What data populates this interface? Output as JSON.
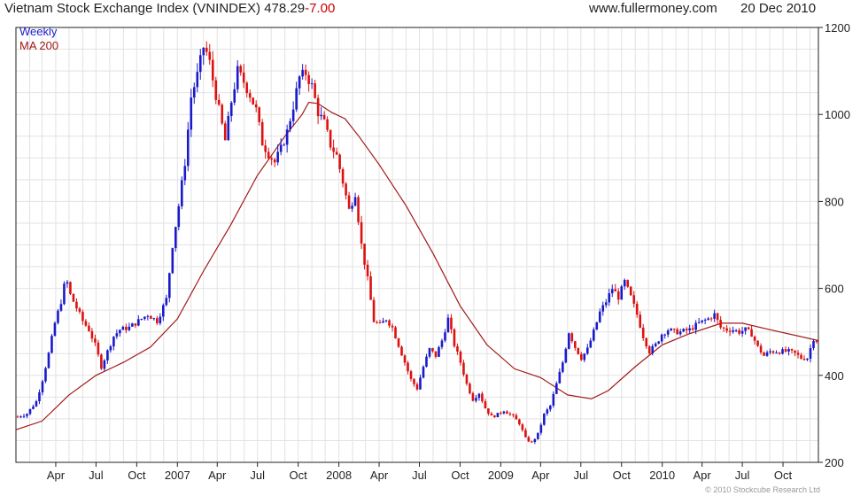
{
  "header": {
    "title": "Vietnam Stock Exchange Index (VNINDEX)",
    "last": "478.29",
    "change": "-7.00",
    "site": "www.fullermoney.com",
    "date": "20 Dec 2010"
  },
  "legend": {
    "weekly": "Weekly",
    "ma": "MA 200"
  },
  "copyright": "© 2010 Stockcube Research Ltd",
  "colors": {
    "up": "#1a1acc",
    "down": "#dd1111",
    "ma": "#a01818",
    "grid": "#e2e2e2",
    "axis": "#222222"
  },
  "chart_data": {
    "type": "line",
    "subtype": "candlestick-weekly",
    "ylim": [
      200,
      1200
    ],
    "y_ticks": [
      200,
      400,
      600,
      800,
      1000,
      1200
    ],
    "x_range": [
      "2006-01-01",
      "2010-12-20"
    ],
    "x_ticks": [
      {
        "label": "Apr",
        "date": "2006-04-01"
      },
      {
        "label": "Jul",
        "date": "2006-07-01"
      },
      {
        "label": "Oct",
        "date": "2006-10-01"
      },
      {
        "label": "2007",
        "date": "2007-01-01"
      },
      {
        "label": "Apr",
        "date": "2007-04-01"
      },
      {
        "label": "Jul",
        "date": "2007-07-01"
      },
      {
        "label": "Oct",
        "date": "2007-10-01"
      },
      {
        "label": "2008",
        "date": "2008-01-01"
      },
      {
        "label": "Apr",
        "date": "2008-04-01"
      },
      {
        "label": "Jul",
        "date": "2008-07-01"
      },
      {
        "label": "Oct",
        "date": "2008-10-01"
      },
      {
        "label": "2009",
        "date": "2009-01-01"
      },
      {
        "label": "Apr",
        "date": "2009-04-01"
      },
      {
        "label": "Jul",
        "date": "2009-07-01"
      },
      {
        "label": "Oct",
        "date": "2009-10-01"
      },
      {
        "label": "2010",
        "date": "2010-01-01"
      },
      {
        "label": "Apr",
        "date": "2010-04-01"
      },
      {
        "label": "Jul",
        "date": "2010-07-01"
      },
      {
        "label": "Oct",
        "date": "2010-10-01"
      }
    ],
    "series": [
      {
        "name": "Weekly",
        "points": [
          [
            "2006-01-05",
            305
          ],
          [
            "2006-01-26",
            312
          ],
          [
            "2006-02-16",
            340
          ],
          [
            "2006-03-02",
            390
          ],
          [
            "2006-03-16",
            450
          ],
          [
            "2006-03-30",
            520
          ],
          [
            "2006-04-13",
            570
          ],
          [
            "2006-04-24",
            625
          ],
          [
            "2006-05-04",
            585
          ],
          [
            "2006-05-18",
            555
          ],
          [
            "2006-06-01",
            525
          ],
          [
            "2006-06-15",
            505
          ],
          [
            "2006-06-29",
            470
          ],
          [
            "2006-07-13",
            420
          ],
          [
            "2006-07-27",
            455
          ],
          [
            "2006-08-10",
            490
          ],
          [
            "2006-08-24",
            505
          ],
          [
            "2006-09-14",
            510
          ],
          [
            "2006-10-05",
            525
          ],
          [
            "2006-10-26",
            540
          ],
          [
            "2006-11-16",
            525
          ],
          [
            "2006-12-07",
            575
          ],
          [
            "2006-12-21",
            700
          ],
          [
            "2007-01-04",
            790
          ],
          [
            "2007-01-18",
            890
          ],
          [
            "2007-02-01",
            1040
          ],
          [
            "2007-02-15",
            1090
          ],
          [
            "2007-03-01",
            1155
          ],
          [
            "2007-03-12",
            1135
          ],
          [
            "2007-03-22",
            1080
          ],
          [
            "2007-04-05",
            1010
          ],
          [
            "2007-04-19",
            940
          ],
          [
            "2007-05-03",
            1030
          ],
          [
            "2007-05-17",
            1100
          ],
          [
            "2007-05-31",
            1075
          ],
          [
            "2007-06-14",
            1045
          ],
          [
            "2007-06-28",
            1010
          ],
          [
            "2007-07-12",
            935
          ],
          [
            "2007-07-26",
            910
          ],
          [
            "2007-08-09",
            890
          ],
          [
            "2007-08-23",
            920
          ],
          [
            "2007-09-06",
            960
          ],
          [
            "2007-09-20",
            1020
          ],
          [
            "2007-10-04",
            1085
          ],
          [
            "2007-10-18",
            1095
          ],
          [
            "2007-11-01",
            1065
          ],
          [
            "2007-11-15",
            1005
          ],
          [
            "2007-11-29",
            980
          ],
          [
            "2007-12-13",
            930
          ],
          [
            "2007-12-27",
            905
          ],
          [
            "2008-01-10",
            845
          ],
          [
            "2008-01-24",
            780
          ],
          [
            "2008-02-07",
            820
          ],
          [
            "2008-02-21",
            700
          ],
          [
            "2008-03-06",
            620
          ],
          [
            "2008-03-20",
            525
          ],
          [
            "2008-04-03",
            515
          ],
          [
            "2008-04-17",
            530
          ],
          [
            "2008-05-01",
            510
          ],
          [
            "2008-05-15",
            470
          ],
          [
            "2008-05-29",
            430
          ],
          [
            "2008-06-12",
            390
          ],
          [
            "2008-06-26",
            370
          ],
          [
            "2008-07-10",
            420
          ],
          [
            "2008-07-24",
            460
          ],
          [
            "2008-08-07",
            445
          ],
          [
            "2008-08-21",
            480
          ],
          [
            "2008-09-04",
            530
          ],
          [
            "2008-09-18",
            470
          ],
          [
            "2008-10-02",
            430
          ],
          [
            "2008-10-16",
            380
          ],
          [
            "2008-10-30",
            345
          ],
          [
            "2008-11-13",
            360
          ],
          [
            "2008-11-27",
            325
          ],
          [
            "2008-12-11",
            305
          ],
          [
            "2008-12-25",
            310
          ],
          [
            "2009-01-08",
            320
          ],
          [
            "2009-01-29",
            305
          ],
          [
            "2009-02-12",
            290
          ],
          [
            "2009-02-26",
            255
          ],
          [
            "2009-03-12",
            245
          ],
          [
            "2009-03-26",
            265
          ],
          [
            "2009-04-09",
            310
          ],
          [
            "2009-04-23",
            330
          ],
          [
            "2009-05-07",
            380
          ],
          [
            "2009-05-21",
            430
          ],
          [
            "2009-06-04",
            500
          ],
          [
            "2009-06-18",
            465
          ],
          [
            "2009-07-02",
            440
          ],
          [
            "2009-07-16",
            460
          ],
          [
            "2009-07-30",
            500
          ],
          [
            "2009-08-13",
            545
          ],
          [
            "2009-08-27",
            570
          ],
          [
            "2009-09-10",
            600
          ],
          [
            "2009-09-24",
            580
          ],
          [
            "2009-10-08",
            615
          ],
          [
            "2009-10-22",
            580
          ],
          [
            "2009-11-05",
            540
          ],
          [
            "2009-11-19",
            490
          ],
          [
            "2009-12-03",
            455
          ],
          [
            "2009-12-17",
            470
          ],
          [
            "2009-12-31",
            495
          ],
          [
            "2010-01-14",
            505
          ],
          [
            "2010-01-28",
            500
          ],
          [
            "2010-02-11",
            500
          ],
          [
            "2010-03-04",
            505
          ],
          [
            "2010-03-25",
            520
          ],
          [
            "2010-04-15",
            530
          ],
          [
            "2010-04-29",
            540
          ],
          [
            "2010-05-13",
            510
          ],
          [
            "2010-05-27",
            505
          ],
          [
            "2010-06-10",
            505
          ],
          [
            "2010-06-24",
            500
          ],
          [
            "2010-07-08",
            505
          ],
          [
            "2010-07-22",
            495
          ],
          [
            "2010-08-05",
            465
          ],
          [
            "2010-08-19",
            445
          ],
          [
            "2010-09-02",
            455
          ],
          [
            "2010-09-16",
            455
          ],
          [
            "2010-09-30",
            455
          ],
          [
            "2010-10-14",
            455
          ],
          [
            "2010-10-28",
            450
          ],
          [
            "2010-11-11",
            440
          ],
          [
            "2010-11-25",
            440
          ],
          [
            "2010-12-09",
            485
          ],
          [
            "2010-12-20",
            478.29
          ]
        ]
      },
      {
        "name": "MA 200",
        "points": [
          [
            "2006-01-01",
            275
          ],
          [
            "2006-03-01",
            295
          ],
          [
            "2006-05-01",
            355
          ],
          [
            "2006-07-01",
            400
          ],
          [
            "2006-09-01",
            430
          ],
          [
            "2006-11-01",
            465
          ],
          [
            "2007-01-01",
            530
          ],
          [
            "2007-03-01",
            640
          ],
          [
            "2007-05-01",
            745
          ],
          [
            "2007-07-01",
            860
          ],
          [
            "2007-09-01",
            950
          ],
          [
            "2007-10-10",
            1000
          ],
          [
            "2007-10-25",
            1028
          ],
          [
            "2007-11-15",
            1025
          ],
          [
            "2007-12-15",
            1005
          ],
          [
            "2008-01-15",
            990
          ],
          [
            "2008-02-15",
            950
          ],
          [
            "2008-04-01",
            885
          ],
          [
            "2008-06-01",
            790
          ],
          [
            "2008-08-01",
            680
          ],
          [
            "2008-10-01",
            560
          ],
          [
            "2008-12-01",
            470
          ],
          [
            "2009-02-01",
            415
          ],
          [
            "2009-04-01",
            395
          ],
          [
            "2009-06-01",
            355
          ],
          [
            "2009-07-25",
            346
          ],
          [
            "2009-09-01",
            365
          ],
          [
            "2009-11-01",
            420
          ],
          [
            "2010-01-01",
            470
          ],
          [
            "2010-03-01",
            495
          ],
          [
            "2010-05-15",
            520
          ],
          [
            "2010-07-01",
            520
          ],
          [
            "2010-09-01",
            505
          ],
          [
            "2010-12-20",
            480
          ]
        ]
      }
    ]
  }
}
